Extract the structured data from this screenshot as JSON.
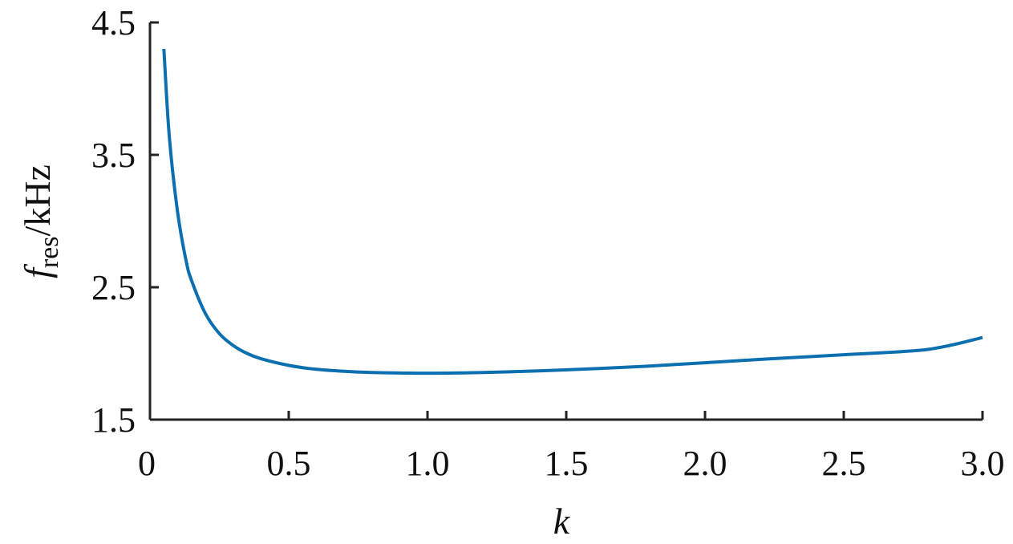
{
  "chart_data": {
    "type": "line",
    "xlabel": "k",
    "ylabel": {
      "symbol": "f",
      "subscript": "res",
      "unit": "/kHz"
    },
    "xlim": [
      0,
      3.0
    ],
    "ylim": [
      1.5,
      4.5
    ],
    "xticks": [
      "0",
      "0.5",
      "1.0",
      "1.5",
      "2.0",
      "2.5",
      "3.0"
    ],
    "xtick_values": [
      0,
      0.5,
      1.0,
      1.5,
      2.0,
      2.5,
      3.0
    ],
    "yticks": [
      "1.5",
      "2.5",
      "3.5",
      "4.5"
    ],
    "ytick_values": [
      1.5,
      2.5,
      3.5,
      4.5
    ],
    "grid": false,
    "series": [
      {
        "color": "#0b6fb0",
        "x": [
          0.05,
          0.07,
          0.1,
          0.13,
          0.15,
          0.2,
          0.25,
          0.3,
          0.35,
          0.4,
          0.5,
          0.6,
          0.7,
          0.8,
          0.9,
          1.0,
          1.1,
          1.2,
          1.4,
          1.6,
          1.8,
          2.0,
          2.2,
          2.5,
          2.8,
          3.0
        ],
        "y": [
          4.3,
          3.63,
          3.06,
          2.7,
          2.55,
          2.3,
          2.15,
          2.06,
          2.0,
          1.96,
          1.91,
          1.88,
          1.865,
          1.856,
          1.852,
          1.851,
          1.852,
          1.856,
          1.868,
          1.885,
          1.905,
          1.93,
          1.955,
          1.99,
          2.03,
          2.12
        ]
      }
    ]
  }
}
